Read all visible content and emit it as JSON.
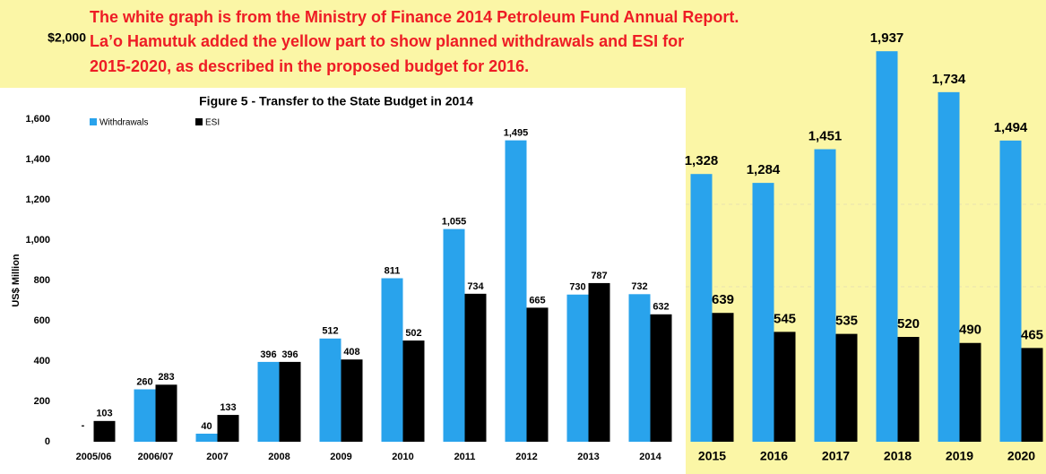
{
  "chart_data": {
    "type": "bar",
    "annotation": [
      "The white graph is from the Ministry of Finance 2014 Petroleum Fund Annual Report.",
      "La’o Hamutuk added the yellow part to show planned withdrawals and ESI for",
      "2015-2020, as described in the proposed budget for 2016."
    ],
    "title": "Figure 5 - Transfer to the State Budget in 2014",
    "y_label": "US$ Million",
    "categories": [
      "2005/06",
      "2006/07",
      "2007",
      "2008",
      "2009",
      "2010",
      "2011",
      "2012",
      "2013",
      "2014",
      "2015",
      "2016",
      "2017",
      "2018",
      "2019",
      "2020"
    ],
    "series": [
      {
        "name": "Withdrawals",
        "color": "#29a3ec",
        "values": [
          null,
          260,
          40,
          396,
          512,
          811,
          1055,
          1495,
          730,
          732,
          1328,
          1284,
          1451,
          1937,
          1734,
          1494
        ],
        "value_labels": [
          "-",
          "260",
          "40",
          "396",
          "512",
          "811",
          "1,055",
          "1,495",
          "730",
          "732",
          "1,328",
          "1,284",
          "1,451",
          "1,937",
          "1,734",
          "1,494"
        ]
      },
      {
        "name": "ESI",
        "color": "#000000",
        "values": [
          103,
          283,
          133,
          396,
          408,
          502,
          734,
          665,
          787,
          632,
          639,
          545,
          535,
          520,
          490,
          465
        ]
      }
    ],
    "ylim": [
      0,
      2000
    ],
    "yticks": [
      0,
      200,
      400,
      600,
      {
        "value": 800,
        "label": "800"
      },
      {
        "value": 1000,
        "label": "1,000"
      },
      {
        "value": 1200,
        "label": "1,200"
      },
      {
        "value": 1400,
        "label": "1,400"
      },
      {
        "value": 1600,
        "label": "1,600"
      },
      {
        "value": 2000,
        "label": "$2,000"
      }
    ],
    "legend": "top-left"
  }
}
